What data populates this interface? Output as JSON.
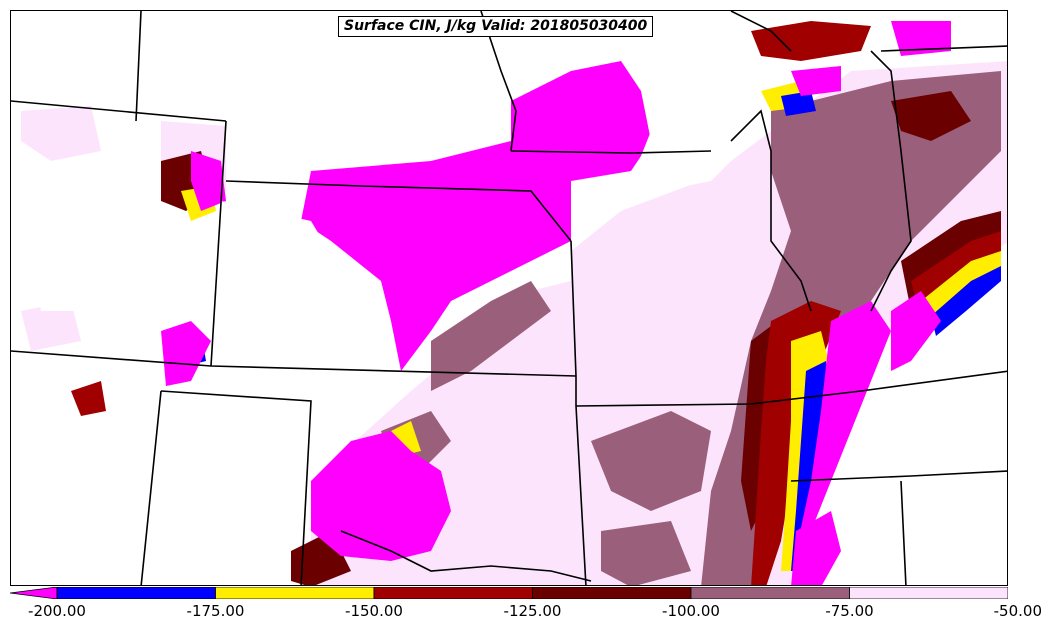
{
  "title": "Surface CIN, J/kg Valid: 201805030400",
  "colorbar": {
    "ticks": [
      "-200.00",
      "-175.00",
      "-150.00",
      "-125.00",
      "-100.00",
      "-75.00",
      "-50.00"
    ],
    "bins": [
      {
        "from": -200,
        "to": -175,
        "color": "#0000ff"
      },
      {
        "from": -175,
        "to": -150,
        "color": "#ffee00"
      },
      {
        "from": -150,
        "to": -125,
        "color": "#a00000"
      },
      {
        "from": -125,
        "to": -100,
        "color": "#6a0000"
      },
      {
        "from": -100,
        "to": -75,
        "color": "#9a5f7a"
      },
      {
        "from": -75,
        "to": -50,
        "color": "#fce4fc"
      }
    ],
    "extend_below_color": "#ff00ff"
  },
  "colors": {
    "below_min": "#ff00ff",
    "blue": "#0000ff",
    "yellow": "#ffee00",
    "red": "#a00000",
    "darkred": "#6a0000",
    "mauve": "#9a5f7a",
    "lightpink": "#fce4fc",
    "borders": "#000000"
  }
}
